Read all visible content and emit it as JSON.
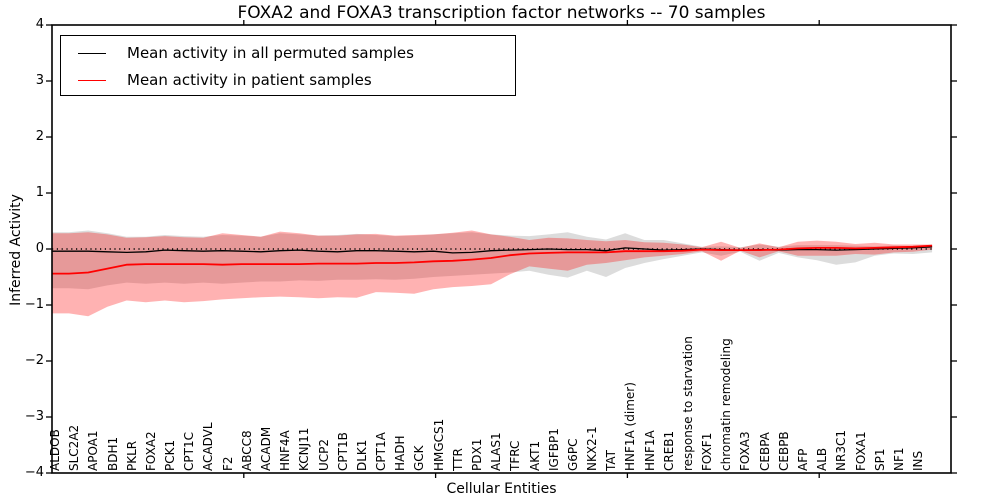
{
  "chart_data": {
    "type": "line",
    "title": "FOXA2 and FOXA3 transcription factor networks -- 70 samples",
    "xlabel": "Cellular Entities",
    "ylabel": "Inferred Activity",
    "ylim": [
      -4,
      4
    ],
    "yticks": [
      4,
      3,
      2,
      1,
      0,
      -1,
      -2,
      -3,
      -4
    ],
    "ytick_labels": [
      "4",
      "3",
      "2",
      "1",
      "0",
      "−1",
      "−2",
      "−3",
      "−4"
    ],
    "xtick_marks": [
      10,
      20,
      30,
      40
    ],
    "grid": false,
    "legend_position": "upper left",
    "zero_line": {
      "style": "dotted",
      "color": "#000000",
      "y": 0
    },
    "categories": [
      "ALDOB",
      "SLC2A2",
      "APOA1",
      "BDH1",
      "PKLR",
      "FOXA2",
      "PCK1",
      "CPT1C",
      "ACADVL",
      "F2",
      "ABCC8",
      "ACADM",
      "HNF4A",
      "KCNJ11",
      "UCP2",
      "CPT1B",
      "DLK1",
      "CPT1A",
      "HADH",
      "GCK",
      "HMGCS1",
      "TTR",
      "PDX1",
      "ALAS1",
      "TFRC",
      "AKT1",
      "IGFBP1",
      "G6PC",
      "NKX2-1",
      "TAT",
      "HNF1A (dimer)",
      "HNF1A",
      "CREB1",
      "response to starvation",
      "FOXF1",
      "chromatin remodeling",
      "FOXA3",
      "CEBPA",
      "CEBPB",
      "AFP",
      "ALB",
      "NR3C1",
      "FOXA1",
      "SP1",
      "NF1",
      "INS"
    ],
    "series": [
      {
        "name": "Mean activity in all permuted samples",
        "kind": "line",
        "color": "#000000",
        "width": 1.3,
        "values": [
          -0.04,
          -0.04,
          -0.05,
          -0.06,
          -0.05,
          -0.02,
          -0.03,
          -0.04,
          -0.03,
          -0.04,
          -0.05,
          -0.03,
          -0.02,
          -0.04,
          -0.05,
          -0.03,
          -0.03,
          -0.04,
          -0.05,
          -0.04,
          -0.07,
          -0.06,
          -0.03,
          -0.02,
          -0.01,
          0.0,
          -0.01,
          -0.01,
          -0.03,
          0.02,
          0.0,
          -0.02,
          -0.01,
          0.0,
          -0.01,
          -0.02,
          -0.01,
          -0.02,
          -0.01,
          -0.01,
          -0.02,
          -0.01,
          0.0,
          0.01,
          0.02,
          0.04
        ]
      },
      {
        "name": "Mean activity in patient samples",
        "kind": "line",
        "color": "#ff0000",
        "width": 1.8,
        "values": [
          -0.44,
          -0.42,
          -0.35,
          -0.28,
          -0.27,
          -0.27,
          -0.27,
          -0.27,
          -0.28,
          -0.27,
          -0.27,
          -0.27,
          -0.27,
          -0.26,
          -0.26,
          -0.26,
          -0.25,
          -0.25,
          -0.24,
          -0.22,
          -0.21,
          -0.19,
          -0.16,
          -0.11,
          -0.08,
          -0.07,
          -0.06,
          -0.06,
          -0.06,
          -0.04,
          -0.04,
          -0.04,
          -0.03,
          -0.01,
          -0.02,
          -0.02,
          -0.02,
          -0.01,
          0.01,
          0.02,
          0.02,
          0.01,
          0.02,
          0.03,
          0.04,
          0.06
        ]
      },
      {
        "name": "Permuted samples std band",
        "kind": "band",
        "color": "rgba(128,128,128,0.28)",
        "upper": [
          0.3,
          0.33,
          0.28,
          0.22,
          0.22,
          0.25,
          0.23,
          0.22,
          0.25,
          0.24,
          0.22,
          0.28,
          0.26,
          0.24,
          0.25,
          0.27,
          0.25,
          0.23,
          0.24,
          0.26,
          0.28,
          0.3,
          0.26,
          0.24,
          0.23,
          0.26,
          0.3,
          0.22,
          0.17,
          0.28,
          0.16,
          0.16,
          0.1,
          0.04,
          0.05,
          0.03,
          0.08,
          0.04,
          0.07,
          0.07,
          0.07,
          0.06,
          0.05,
          0.06,
          0.05,
          0.06
        ],
        "lower": [
          -0.7,
          -0.72,
          -0.65,
          -0.6,
          -0.62,
          -0.6,
          -0.62,
          -0.6,
          -0.62,
          -0.6,
          -0.58,
          -0.58,
          -0.56,
          -0.57,
          -0.55,
          -0.55,
          -0.54,
          -0.55,
          -0.53,
          -0.5,
          -0.48,
          -0.46,
          -0.44,
          -0.42,
          -0.39,
          -0.46,
          -0.51,
          -0.39,
          -0.5,
          -0.34,
          -0.25,
          -0.18,
          -0.12,
          -0.06,
          -0.12,
          -0.05,
          -0.21,
          -0.07,
          -0.15,
          -0.2,
          -0.28,
          -0.24,
          -0.12,
          -0.08,
          -0.09,
          -0.06
        ]
      },
      {
        "name": "Patient samples std band",
        "kind": "band",
        "color": "rgba(255,0,0,0.30)",
        "upper": [
          0.28,
          0.3,
          0.26,
          0.2,
          0.21,
          0.23,
          0.21,
          0.2,
          0.28,
          0.25,
          0.22,
          0.31,
          0.28,
          0.24,
          0.24,
          0.26,
          0.27,
          0.24,
          0.25,
          0.26,
          0.29,
          0.33,
          0.26,
          0.22,
          0.16,
          0.2,
          0.19,
          0.16,
          0.14,
          0.16,
          0.12,
          0.11,
          0.08,
          0.03,
          0.13,
          0.02,
          0.1,
          0.03,
          0.13,
          0.15,
          0.13,
          0.09,
          0.11,
          0.08,
          0.08,
          0.08
        ],
        "lower": [
          -1.15,
          -1.2,
          -1.03,
          -0.92,
          -0.95,
          -0.92,
          -0.95,
          -0.93,
          -0.9,
          -0.88,
          -0.86,
          -0.85,
          -0.86,
          -0.88,
          -0.86,
          -0.87,
          -0.77,
          -0.78,
          -0.8,
          -0.72,
          -0.68,
          -0.66,
          -0.63,
          -0.45,
          -0.31,
          -0.35,
          -0.39,
          -0.28,
          -0.25,
          -0.2,
          -0.15,
          -0.12,
          -0.09,
          -0.04,
          -0.21,
          -0.03,
          -0.15,
          -0.04,
          -0.12,
          -0.12,
          -0.12,
          -0.09,
          -0.1,
          -0.06,
          -0.05,
          -0.01
        ]
      }
    ]
  },
  "legend": {
    "items": [
      {
        "label": "Mean activity in all permuted samples",
        "color": "#000000"
      },
      {
        "label": "Mean activity in patient samples",
        "color": "#ff0000"
      }
    ]
  }
}
